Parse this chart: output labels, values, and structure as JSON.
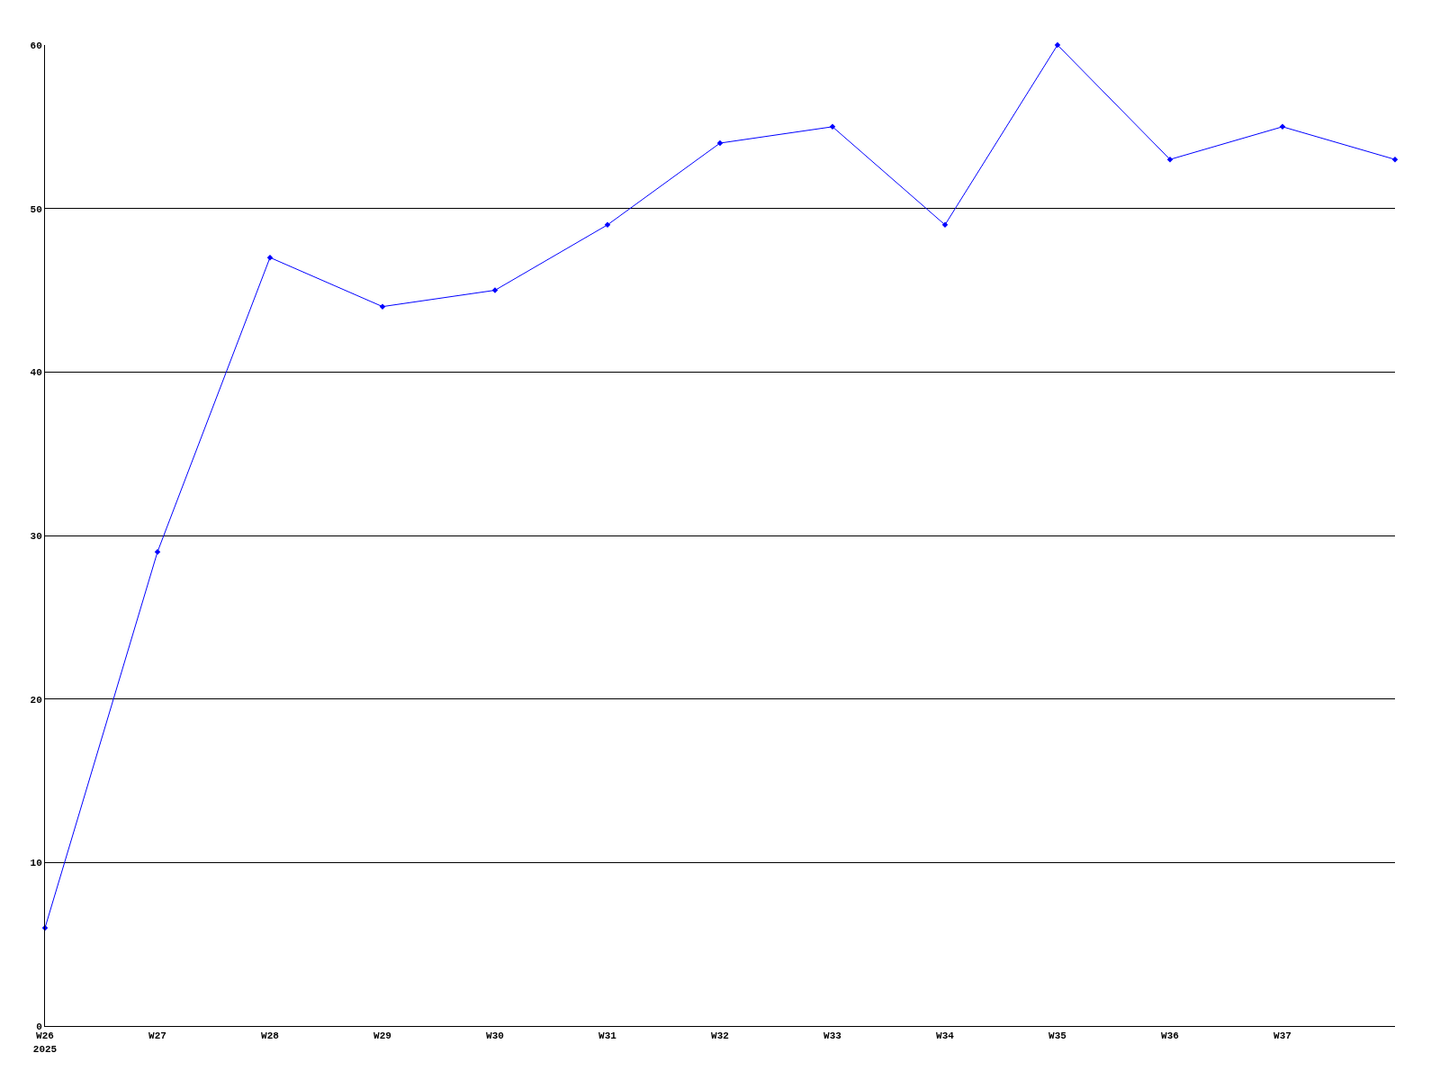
{
  "chart_data": {
    "type": "line",
    "categories": [
      "W26\n2025",
      "W27",
      "W28",
      "W29",
      "W30",
      "W31",
      "W32",
      "W33",
      "W34",
      "W35",
      "W36",
      "W37",
      null
    ],
    "series": [
      {
        "color": "#0000ff",
        "values": [
          6,
          29,
          47,
          44,
          45,
          49,
          54,
          55,
          49,
          60,
          53,
          55,
          53
        ]
      }
    ],
    "ylim": [
      0,
      60
    ],
    "yticks": [
      0,
      10,
      20,
      30,
      40,
      50,
      60
    ],
    "grid": "y",
    "legend": false,
    "marker": "diamond",
    "line_style": "solid"
  }
}
